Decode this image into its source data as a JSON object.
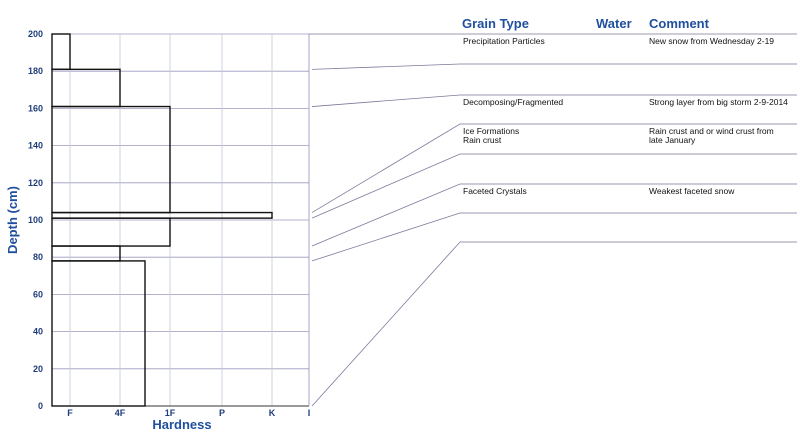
{
  "chart_data": {
    "type": "bar",
    "ylabel": "Depth (cm)",
    "xlabel": "Hardness",
    "ylim": [
      0,
      200
    ],
    "y_ticks": [
      "0",
      "20",
      "40",
      "60",
      "80",
      "100",
      "120",
      "140",
      "160",
      "180",
      "200"
    ],
    "x_ticks": [
      "F",
      "4F",
      "1F",
      "P",
      "K",
      "I"
    ],
    "grid": true,
    "layers": [
      {
        "bottom": 181,
        "top": 200,
        "hardness": "F"
      },
      {
        "bottom": 161,
        "top": 181,
        "hardness": "4F"
      },
      {
        "bottom": 104,
        "top": 161,
        "hardness": "1F"
      },
      {
        "bottom": 101,
        "top": 104,
        "hardness": "K"
      },
      {
        "bottom": 86,
        "top": 101,
        "hardness": "1F"
      },
      {
        "bottom": 78,
        "top": 86,
        "hardness": "4F"
      },
      {
        "bottom": 0,
        "top": 78,
        "hardness": "1F-"
      }
    ],
    "table_headers": {
      "grain_type": "Grain Type",
      "water": "Water",
      "comment": "Comment"
    },
    "table_rows": [
      {
        "grain": [
          "Precipitation Particles"
        ],
        "comment": [
          "New snow from Wednesday 2-19"
        ]
      },
      {
        "grain": [],
        "comment": []
      },
      {
        "grain": [
          "Decomposing/Fragmented"
        ],
        "comment": [
          "Strong layer from big storm 2-9-2014"
        ]
      },
      {
        "grain": [
          "Ice Formations",
          "Rain crust"
        ],
        "comment": [
          "Rain crust and or wind crust from",
          "late January"
        ]
      },
      {
        "grain": [],
        "comment": []
      },
      {
        "grain": [
          "Faceted Crystals"
        ],
        "comment": [
          "Weakest faceted snow"
        ]
      },
      {
        "grain": [],
        "comment": []
      }
    ]
  }
}
